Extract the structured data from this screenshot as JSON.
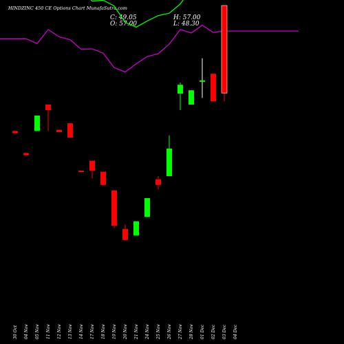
{
  "header": {
    "title": "HINDZINC 450 CE Options Chart MunafaSutra.com",
    "close_label": "C: 49.05",
    "open_label": "O: 57.00",
    "high_label": "H: 57.00",
    "low_label": "L: 48.30"
  },
  "chart_data": {
    "type": "candlestick",
    "colors": {
      "up": "#00ff00",
      "down": "#ff0000",
      "background": "#000000",
      "upper_band": "#00ff00",
      "lower_band": "#cc00cc",
      "text": "#ffffff"
    },
    "price_range": [
      30,
      62
    ],
    "dates": [
      "30 Oct",
      "04 Nov",
      "05 Nov",
      "11 Nov",
      "12 Nov",
      "13 Nov",
      "14 Nov",
      "17 Nov",
      "18 Nov",
      "19 Nov",
      "20 Nov",
      "21 Nov",
      "24 Nov",
      "25 Nov",
      "26 Nov",
      "27 Nov",
      "28 Nov",
      "01 Dec",
      "02 Dec",
      "03 Dec",
      "04 Dec"
    ],
    "candles": [
      {
        "date": "30 Oct",
        "open": 45.6,
        "close": 45.4,
        "high": 45.6,
        "low": 45.4
      },
      {
        "date": "04 Nov",
        "open": 43.6,
        "close": 43.4,
        "high": 43.6,
        "low": 43.4
      },
      {
        "date": "05 Nov",
        "open": 45.6,
        "close": 47.0,
        "high": 47.0,
        "low": 45.6
      },
      {
        "date": "11 Nov",
        "open": 48.0,
        "close": 47.5,
        "high": 48.0,
        "low": 45.6
      },
      {
        "date": "12 Nov",
        "open": 45.7,
        "close": 45.5,
        "high": 45.7,
        "low": 45.5
      },
      {
        "date": "13 Nov",
        "open": 46.3,
        "close": 45.0,
        "high": 46.3,
        "low": 45.0
      },
      {
        "date": "14 Nov",
        "open": 42.0,
        "close": 41.9,
        "high": 42.0,
        "low": 41.9
      },
      {
        "date": "17 Nov",
        "open": 42.9,
        "close": 42.0,
        "high": 42.9,
        "low": 41.3
      },
      {
        "date": "18 Nov",
        "open": 41.9,
        "close": 40.7,
        "high": 41.9,
        "low": 40.7
      },
      {
        "date": "19 Nov",
        "open": 40.2,
        "close": 37.0,
        "high": 40.2,
        "low": 36.8
      },
      {
        "date": "20 Nov",
        "open": 36.7,
        "close": 35.7,
        "high": 37.1,
        "low": 35.7
      },
      {
        "date": "21 Nov",
        "open": 36.1,
        "close": 37.4,
        "high": 37.4,
        "low": 36.1
      },
      {
        "date": "24 Nov",
        "open": 37.8,
        "close": 39.5,
        "high": 39.5,
        "low": 37.8
      },
      {
        "date": "25 Nov",
        "open": 41.2,
        "close": 40.7,
        "high": 41.5,
        "low": 40.3
      },
      {
        "date": "26 Nov",
        "open": 41.5,
        "close": 44.0,
        "high": 45.2,
        "low": 41.5
      },
      {
        "date": "27 Nov",
        "open": 49.0,
        "close": 49.8,
        "high": 50.0,
        "low": 47.5
      },
      {
        "date": "28 Nov",
        "open": 48.0,
        "close": 49.3,
        "high": 49.3,
        "low": 48.0
      },
      {
        "date": "01 Dec",
        "open": 50.2,
        "close": 50.2,
        "high": 52.2,
        "low": 48.6
      },
      {
        "date": "02 Dec",
        "open": 50.8,
        "close": 48.3,
        "high": 50.8,
        "low": 48.3
      },
      {
        "date": "03 Dec",
        "open": 57.0,
        "close": 49.05,
        "high": 57.0,
        "low": 48.3
      }
    ],
    "upper_band": [
      72.6,
      72.6,
      70.9,
      73.3,
      73.5,
      72.7,
      72.4,
      69.9,
      70.1,
      68.9,
      65.5,
      64.5,
      65.8,
      66.9,
      67.4,
      69.3,
      72.6,
      72.5,
      72.9,
      71.3
    ],
    "lower_band": [
      62.1,
      62.1,
      61.1,
      64.0,
      62.5,
      61.9,
      59.9,
      60.0,
      59.1,
      56.1,
      55.2,
      56.9,
      58.4,
      59.0,
      61.0,
      64.0,
      63.3,
      64.9,
      63.4,
      63.7
    ]
  }
}
